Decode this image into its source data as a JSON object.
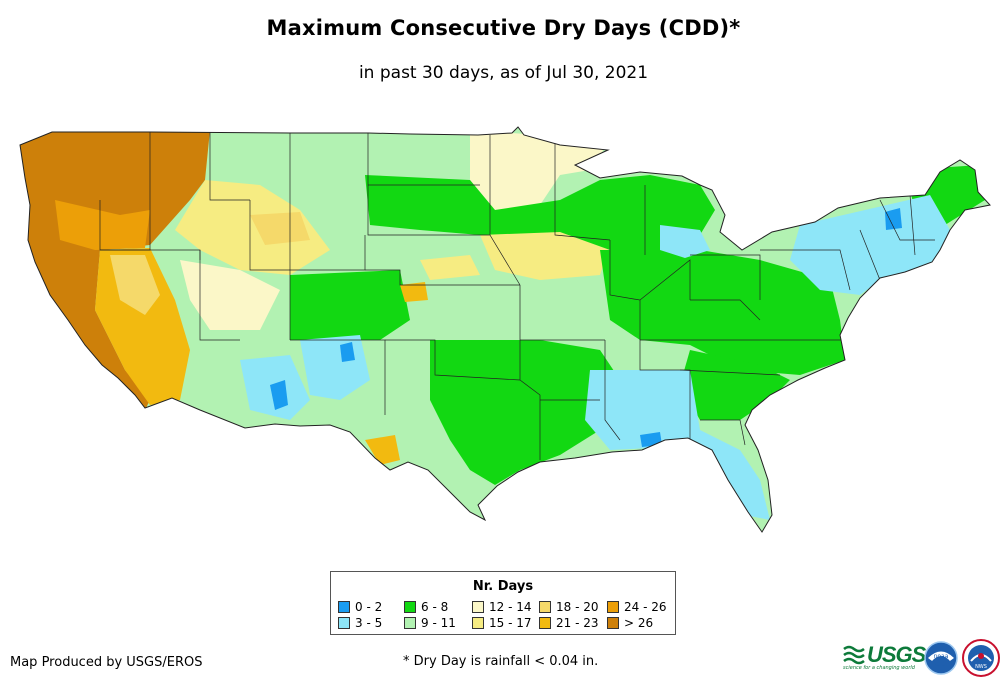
{
  "title": "Maximum Consecutive Dry Days (CDD)*",
  "subtitle": "in past 30 days, as of Jul 30, 2021",
  "legend": {
    "title": "Nr. Days",
    "items": [
      {
        "label": "0 - 2",
        "color": "#1a9cf0"
      },
      {
        "label": "3 - 5",
        "color": "#8ee6f8"
      },
      {
        "label": "6 - 8",
        "color": "#12d812"
      },
      {
        "label": "9 - 11",
        "color": "#b2f2b2"
      },
      {
        "label": "12 - 14",
        "color": "#fbf7c8"
      },
      {
        "label": "15 - 17",
        "color": "#f6ec82"
      },
      {
        "label": "18 - 20",
        "color": "#f5d96a"
      },
      {
        "label": "21 - 23",
        "color": "#f2ba10"
      },
      {
        "label": "24 - 26",
        "color": "#ec9f08"
      },
      {
        "label": "> 26",
        "color": "#cd800a"
      }
    ]
  },
  "credit": "Map Produced by USGS/EROS",
  "footnote": "* Dry Day is rainfall < 0.04 in.",
  "logos": {
    "usgs": "USGS",
    "usgs_tagline": "science for a changing world",
    "noaa": "noaa",
    "nws": "NWS"
  }
}
